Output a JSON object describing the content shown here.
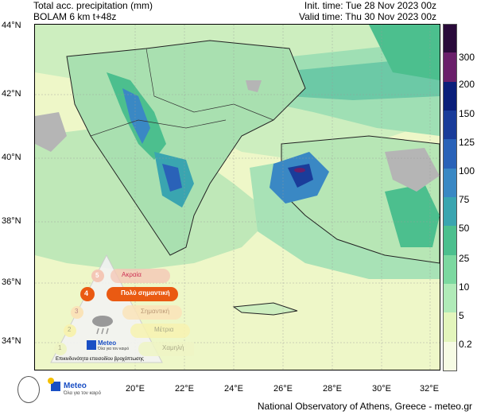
{
  "header": {
    "title_line1": "Total acc. precipitation (mm)",
    "title_line2": "BOLAM 6 km t+48z",
    "init_time": "Init. time: Tue 28 Nov 2023 00z",
    "valid_time": "Valid time: Thu 30 Nov 2023 00z"
  },
  "axes": {
    "lat_labels": [
      "44°N",
      "42°N",
      "40°N",
      "38°N",
      "36°N",
      "34°N"
    ],
    "lon_labels": [
      "20°E",
      "22°E",
      "24°E",
      "26°E",
      "28°E",
      "30°E",
      "32°E"
    ]
  },
  "colorbar": {
    "labels": [
      "300",
      "200",
      "150",
      "125",
      "100",
      "75",
      "50",
      "25",
      "10",
      "5",
      "0.2"
    ],
    "colors": [
      "#2a0a3a",
      "#6a1f6a",
      "#0a1e7a",
      "#1a3c9a",
      "#2a62b8",
      "#3a88c4",
      "#3aa5b0",
      "#4cbf8e",
      "#7cd8a0",
      "#b0eab8",
      "#e3f5bc",
      "#f6fbe4"
    ]
  },
  "legend": {
    "levels": [
      {
        "num": "5",
        "label": "Ακραία"
      },
      {
        "num": "4",
        "label": "Πολύ σημαντική"
      },
      {
        "num": "3",
        "label": "Σημαντική"
      },
      {
        "num": "2",
        "label": "Μέτρια"
      },
      {
        "num": "1",
        "label": "Χαμηλή"
      }
    ],
    "brand": "Meteo",
    "brand_sub": "Όλα για τον καιρό",
    "caption": "Επικινδυνότητα επεισοδίου βροχόπτωσης"
  },
  "footer": {
    "brand": "Meteo",
    "brand_sub": "Όλα για τον καιρό",
    "credit": "National Observatory of Athens, Greece - meteo.gr"
  }
}
